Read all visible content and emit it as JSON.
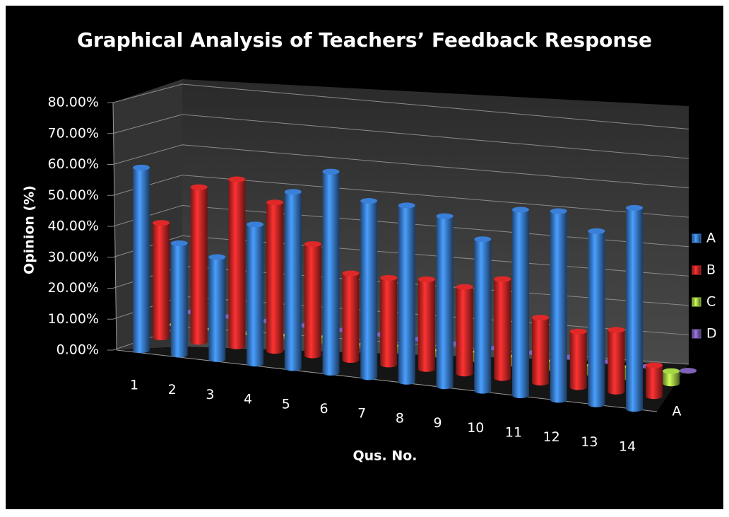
{
  "chart_data": {
    "type": "bar3d",
    "title": "Graphical Analysis of Teachers’ Feedback Response",
    "x_label": "Qus. No.",
    "y_label": "Opinion (%)",
    "depth_categories": [
      "A"
    ],
    "categories": [
      "1",
      "2",
      "3",
      "4",
      "5",
      "6",
      "7",
      "8",
      "9",
      "10",
      "11",
      "12",
      "13",
      "14"
    ],
    "series": [
      {
        "name": "A",
        "color": "#3a7fd8",
        "values": [
          59,
          36,
          33,
          45,
          57,
          65,
          57,
          57,
          55,
          49,
          60,
          61,
          56,
          65
        ]
      },
      {
        "name": "B",
        "color": "#e02828",
        "values": [
          37,
          50,
          54,
          48,
          36,
          28,
          28,
          29,
          28,
          32,
          21,
          18,
          20,
          10
        ]
      },
      {
        "name": "C",
        "color": "#a6d846",
        "values": [
          0,
          0,
          0,
          1,
          2,
          1,
          2,
          2,
          3,
          3,
          3,
          3,
          4,
          4
        ]
      },
      {
        "name": "D",
        "color": "#7f62b8",
        "values": [
          0,
          0,
          0,
          0,
          0,
          0,
          0,
          0,
          0,
          0,
          0,
          0,
          0,
          0
        ]
      }
    ],
    "ylim": [
      0,
      80
    ],
    "yticks": [
      {
        "value": 0,
        "label": "0.00%"
      },
      {
        "value": 10,
        "label": "10.00%"
      },
      {
        "value": 20,
        "label": "20.00%"
      },
      {
        "value": 30,
        "label": "30.00%"
      },
      {
        "value": 40,
        "label": "40.00%"
      },
      {
        "value": 50,
        "label": "50.00%"
      },
      {
        "value": 60,
        "label": "60.00%"
      },
      {
        "value": 70,
        "label": "70.00%"
      },
      {
        "value": 80,
        "label": "80.00%"
      }
    ],
    "grid": true,
    "legend": "right"
  }
}
